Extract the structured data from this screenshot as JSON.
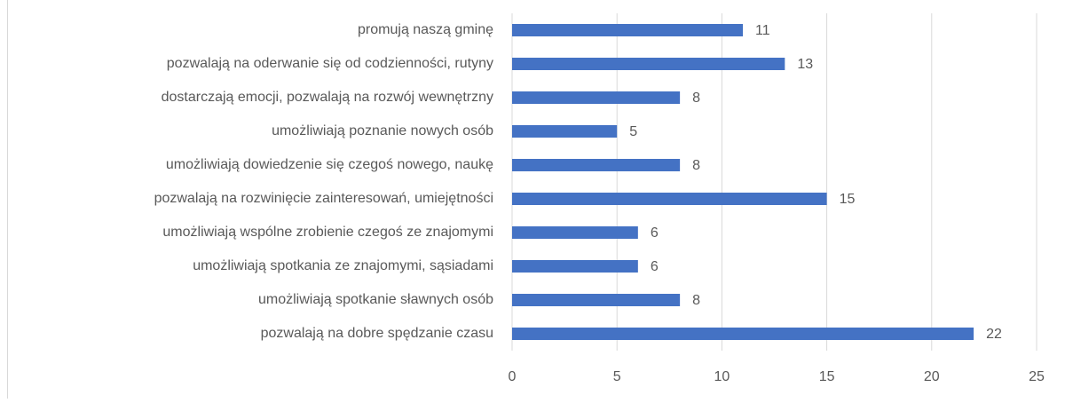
{
  "chart_data": {
    "type": "bar",
    "orientation": "horizontal",
    "categories": [
      "promują naszą gminę",
      "pozwalają na oderwanie się od codzienności, rutyny",
      "dostarczają emocji, pozwalają na rozwój wewnętrzny",
      "umożliwiają poznanie nowych osób",
      "umożliwiają dowiedzenie się czegoś nowego, naukę",
      "pozwalają na rozwinięcie zainteresowań, umiejętności",
      "umożliwiają wspólne zrobienie czegoś ze znajomymi",
      "umożliwiają spotkania ze znajomymi, sąsiadami",
      "umożliwiają spotkanie sławnych osób",
      "pozwalają na dobre spędzanie czasu"
    ],
    "values": [
      11,
      13,
      8,
      5,
      8,
      15,
      6,
      6,
      8,
      22
    ],
    "color": "#4472c4",
    "xlim": [
      0,
      25
    ],
    "xticks": [
      0,
      5,
      10,
      15,
      20,
      25
    ],
    "grid": true
  }
}
